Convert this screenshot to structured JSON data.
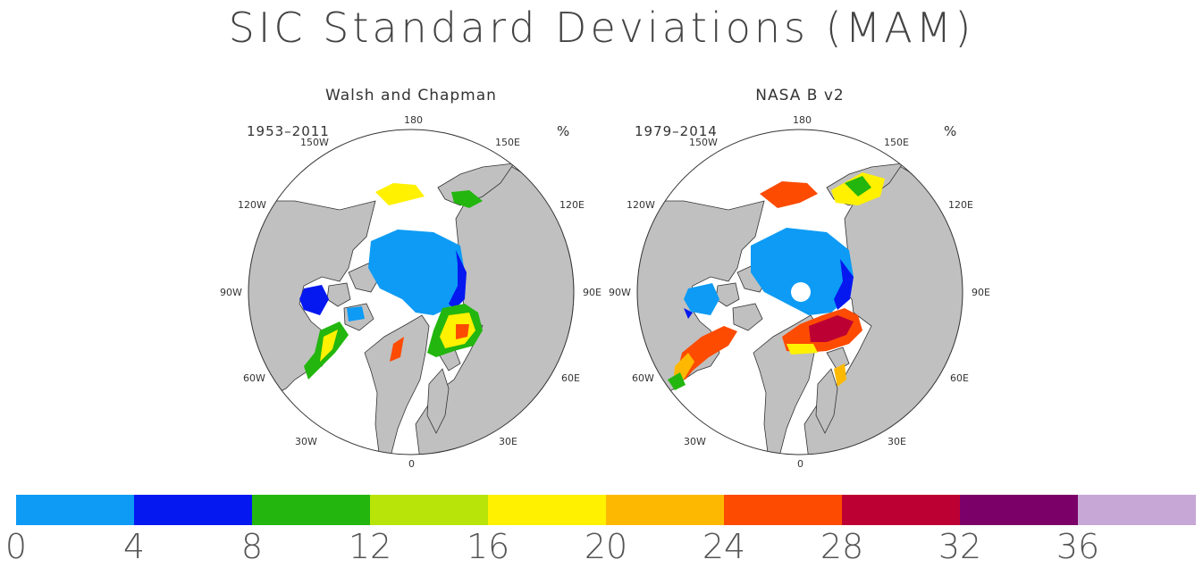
{
  "title": "SIC Standard Deviations (MAM)",
  "unit": "%",
  "panels": [
    {
      "title": "Walsh and Chapman",
      "period": "1953–2011",
      "pole_hole": false
    },
    {
      "title": "NASA B v2",
      "period": "1979–2014",
      "pole_hole": true
    }
  ],
  "longitude_labels": {
    "l180": "180",
    "l150w": "150W",
    "l150e": "150E",
    "l120w": "120W",
    "l120e": "120E",
    "l90w": "90W",
    "l90e": "90E",
    "l60w": "60W",
    "l60e": "60E",
    "l30w": "30W",
    "l30e": "30E",
    "l0": "0"
  },
  "colorbar": {
    "ticks": [
      "0",
      "4",
      "8",
      "12",
      "16",
      "20",
      "24",
      "28",
      "32",
      "36"
    ],
    "colors": [
      "#0d9bf5",
      "#0518f0",
      "#23b60f",
      "#b8e40a",
      "#fff100",
      "#fdb902",
      "#fd4b02",
      "#bd0033",
      "#7b0068",
      "#c6a7d6"
    ]
  },
  "map_colors": {
    "land": "#c0c0c0",
    "ocean": "#ffffff",
    "coast": "#333333"
  }
}
